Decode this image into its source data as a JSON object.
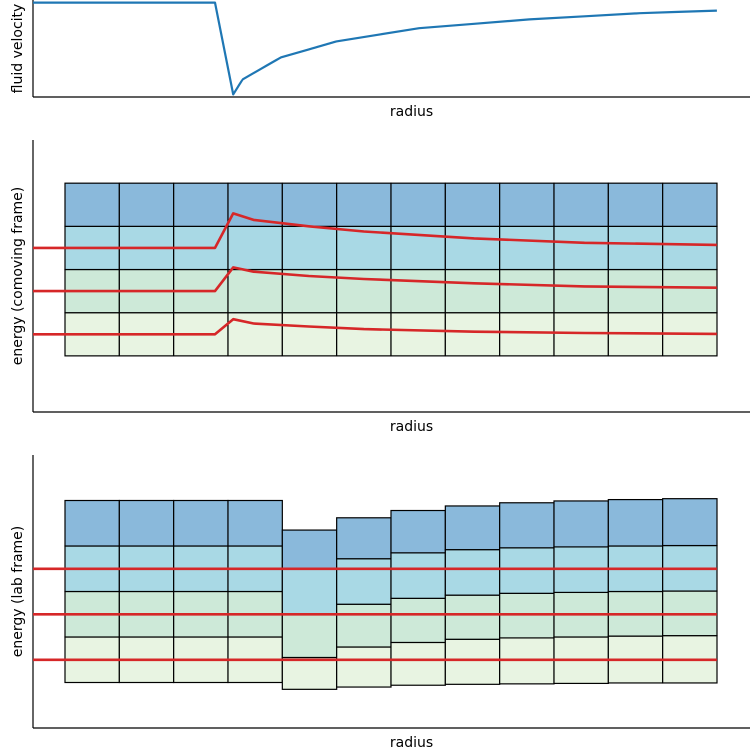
{
  "chart_data": [
    {
      "type": "line",
      "title": "",
      "xlabel": "radius",
      "ylabel": "fluid velocity",
      "grid": false,
      "xlim": [
        0,
        13
      ],
      "ylim": [
        0,
        1.1
      ],
      "series": [
        {
          "color": "#1f77b4",
          "x": [
            0.0,
            3.3,
            3.63,
            3.8,
            4.5,
            5.5,
            7.0,
            9.0,
            11.0,
            12.4
          ],
          "y": [
            1.07,
            1.07,
            0.03,
            0.2,
            0.45,
            0.63,
            0.78,
            0.88,
            0.95,
            0.98
          ]
        }
      ]
    },
    {
      "type": "heatmap",
      "title": "",
      "xlabel": "radius",
      "ylabel": "energy (comoving frame)",
      "grid": false,
      "n_cols": 12,
      "band_colors": [
        "#e8f4e2",
        "#cde9d8",
        "#a9d9e5",
        "#8ab9db"
      ],
      "cell_bottoms": [
        [
          0,
          1,
          2,
          3,
          4
        ],
        [
          0,
          1,
          2,
          3,
          4
        ],
        [
          0,
          1,
          2,
          3,
          4
        ],
        [
          0,
          1,
          2,
          3,
          4
        ],
        [
          0,
          1,
          2,
          3,
          4
        ],
        [
          0,
          1,
          2,
          3,
          4
        ],
        [
          0,
          1,
          2,
          3,
          4
        ],
        [
          0,
          1,
          2,
          3,
          4
        ],
        [
          0,
          1,
          2,
          3,
          4
        ],
        [
          0,
          1,
          2,
          3,
          4
        ],
        [
          0,
          1,
          2,
          3,
          4
        ],
        [
          0,
          1,
          2,
          3,
          4
        ]
      ],
      "lines": [
        {
          "color": "#d62728",
          "x": [
            0.0,
            3.3,
            3.63,
            4.0,
            5.0,
            6.0,
            8.0,
            10.0,
            12.4
          ],
          "y": [
            0.5,
            0.5,
            0.85,
            0.75,
            0.68,
            0.62,
            0.56,
            0.53,
            0.51
          ]
        },
        {
          "color": "#d62728",
          "x": [
            0.0,
            3.3,
            3.63,
            4.0,
            5.0,
            6.0,
            8.0,
            10.0,
            12.4
          ],
          "y": [
            1.5,
            1.5,
            2.05,
            1.95,
            1.85,
            1.78,
            1.68,
            1.61,
            1.58
          ]
        },
        {
          "color": "#d62728",
          "x": [
            0.0,
            3.3,
            3.63,
            4.0,
            5.0,
            6.0,
            8.0,
            10.0,
            12.4
          ],
          "y": [
            2.5,
            2.5,
            3.3,
            3.15,
            3.0,
            2.88,
            2.72,
            2.62,
            2.57
          ]
        }
      ],
      "xlim": [
        0,
        13
      ],
      "ylim": [
        -1.3,
        5
      ]
    },
    {
      "type": "heatmap",
      "title": "",
      "xlabel": "radius",
      "ylabel": "energy (lab frame)",
      "grid": false,
      "n_cols": 12,
      "band_colors": [
        "#e8f4e2",
        "#cde9d8",
        "#a9d9e5",
        "#8ab9db"
      ],
      "cell_bottoms": [
        [
          0,
          1,
          2,
          3,
          4
        ],
        [
          0,
          1,
          2,
          3,
          4
        ],
        [
          0,
          1,
          2,
          3,
          4
        ],
        [
          0,
          1,
          2,
          3,
          4
        ],
        [
          -0.15,
          0.55,
          1.5,
          2.5,
          3.35
        ],
        [
          -0.1,
          0.78,
          1.72,
          2.72,
          3.62
        ],
        [
          -0.06,
          0.88,
          1.85,
          2.85,
          3.78
        ],
        [
          -0.04,
          0.95,
          1.92,
          2.92,
          3.88
        ],
        [
          -0.03,
          0.98,
          1.96,
          2.96,
          3.95
        ],
        [
          -0.02,
          1.0,
          1.98,
          2.98,
          3.99
        ],
        [
          -0.01,
          1.02,
          2.0,
          3.0,
          4.02
        ],
        [
          -0.01,
          1.03,
          2.01,
          3.01,
          4.04
        ]
      ],
      "lines": [
        {
          "color": "#d62728",
          "x": [
            0,
            12.4
          ],
          "y": [
            0.5,
            0.5
          ]
        },
        {
          "color": "#d62728",
          "x": [
            0,
            12.4
          ],
          "y": [
            1.5,
            1.5
          ]
        },
        {
          "color": "#d62728",
          "x": [
            0,
            12.4
          ],
          "y": [
            2.5,
            2.5
          ]
        }
      ],
      "xlim": [
        0,
        13
      ],
      "ylim": [
        -1,
        5
      ]
    }
  ]
}
